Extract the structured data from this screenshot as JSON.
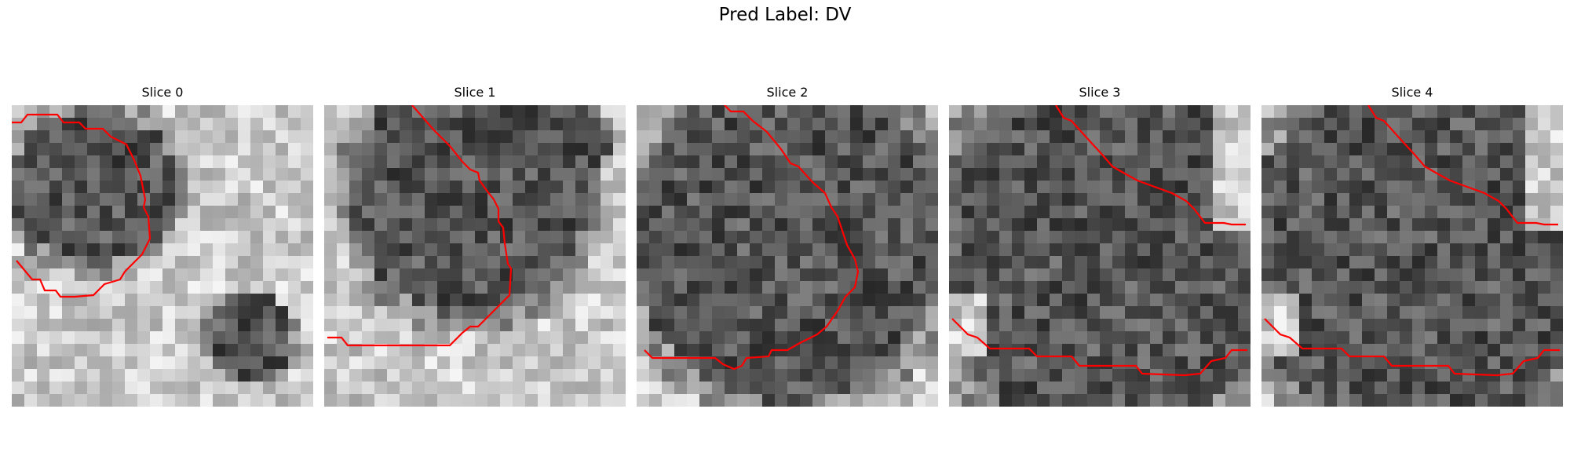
{
  "figure": {
    "suptitle": "Pred Label: DV"
  },
  "colors": {
    "contour": "#ff0000",
    "background": "#ffffff"
  },
  "slices": [
    {
      "title": "Slice 0"
    },
    {
      "title": "Slice 1"
    },
    {
      "title": "Slice 2"
    },
    {
      "title": "Slice 3"
    },
    {
      "title": "Slice 4"
    }
  ]
}
